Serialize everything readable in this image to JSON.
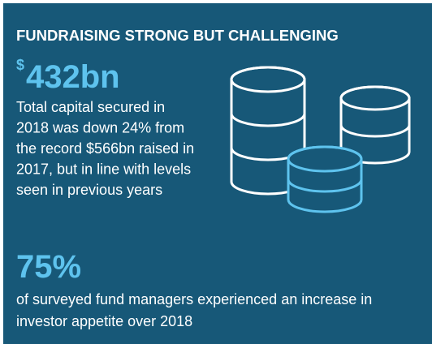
{
  "header": {
    "title": "FUNDRAISING STRONG BUT CHALLENGING"
  },
  "stats": [
    {
      "currency": "$",
      "value": "432bn",
      "lines": [
        "Total capital secured in",
        "2018 was down 24% from",
        "the record $566bn raised in",
        "2017, but in line with levels",
        "seen in previous years"
      ]
    },
    {
      "value": "75%",
      "lines": [
        "of surveyed fund managers experienced an increase in",
        "investor appetite over 2018"
      ]
    }
  ]
}
